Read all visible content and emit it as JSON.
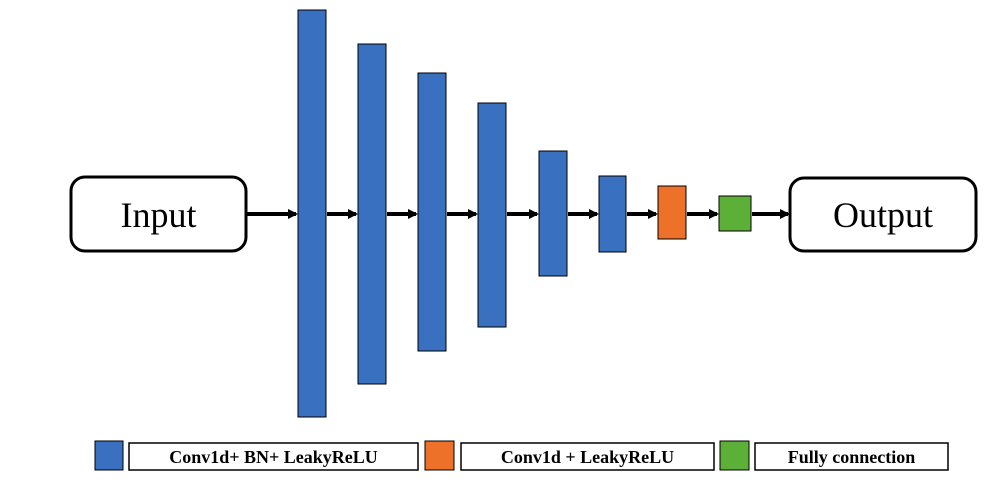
{
  "input_label": "Input",
  "output_label": "Output",
  "colors": {
    "conv_bn": "#3a70c0",
    "conv": "#ed7128",
    "fc": "#5cb037",
    "stroke": "#000000"
  },
  "layers": [
    {
      "kind": "conv_bn"
    },
    {
      "kind": "conv_bn"
    },
    {
      "kind": "conv_bn"
    },
    {
      "kind": "conv_bn"
    },
    {
      "kind": "conv_bn"
    },
    {
      "kind": "conv_bn"
    },
    {
      "kind": "conv"
    },
    {
      "kind": "fc"
    }
  ],
  "legend": [
    {
      "kind": "conv_bn",
      "label": "Conv1d+ BN+ LeakyReLU"
    },
    {
      "kind": "conv",
      "label": "Conv1d + LeakyReLU"
    },
    {
      "kind": "fc",
      "label": "Fully connection"
    }
  ]
}
